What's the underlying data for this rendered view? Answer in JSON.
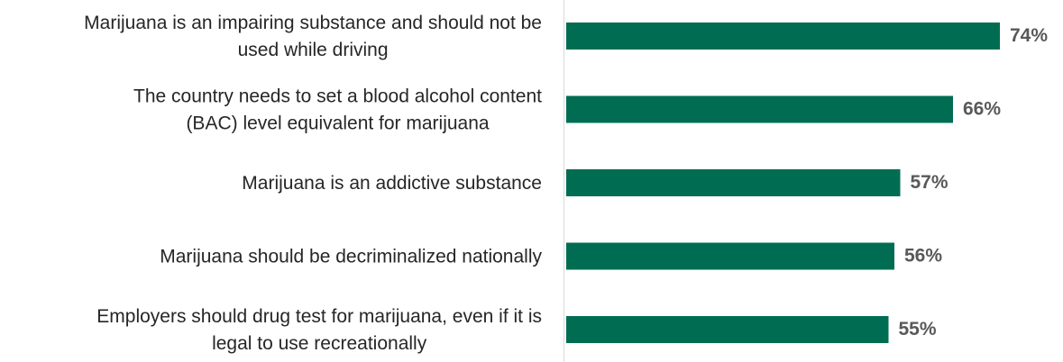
{
  "chart_data": {
    "type": "bar",
    "orientation": "horizontal",
    "categories": [
      [
        "Marijuana is an impairing substance and should not be",
        "used while driving"
      ],
      [
        "The country needs to set a blood alcohol content",
        "(BAC) level equivalent for marijuana"
      ],
      [
        "Marijuana is an addictive substance"
      ],
      [
        "Marijuana should be decriminalized nationally"
      ],
      [
        "Employers should drug test for marijuana, even if it is",
        "legal to use recreationally"
      ]
    ],
    "values": [
      74,
      66,
      57,
      56,
      55
    ],
    "value_labels": [
      "74%",
      "66%",
      "57%",
      "56%",
      "55%"
    ],
    "xlim": [
      0,
      100
    ],
    "bar_color": "#006d52",
    "value_label_color": "#595959",
    "grid": false,
    "legend": "none"
  }
}
